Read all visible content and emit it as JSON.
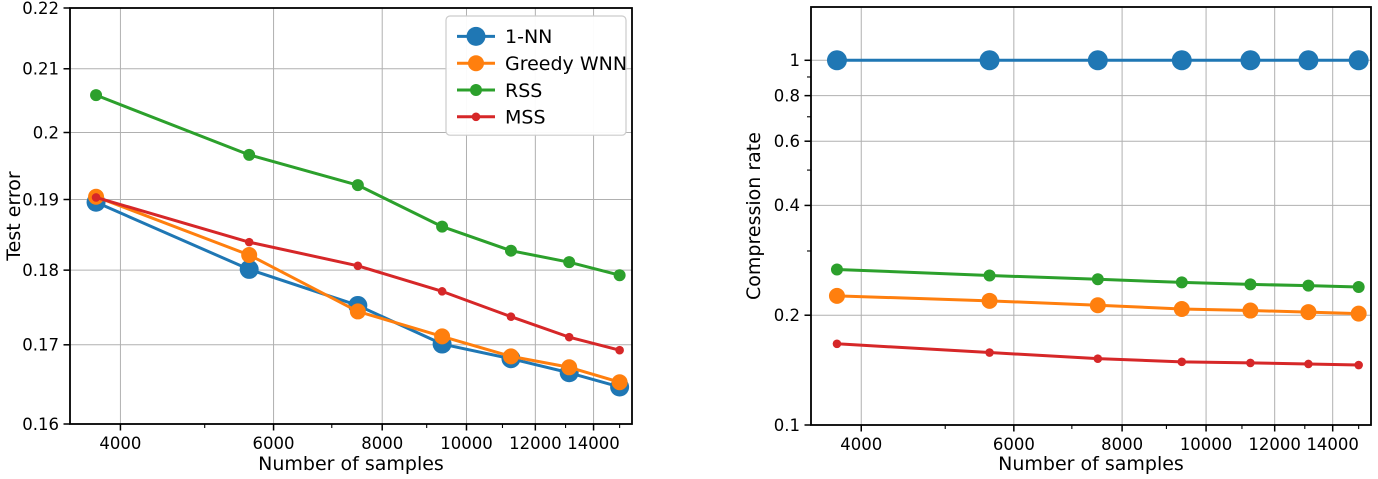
{
  "figure": {
    "background": "#ffffff",
    "grid_color": "#b0b0b0",
    "axis_color": "#000000",
    "tick_label_color": "#000000",
    "legend_border_color": "#cccccc",
    "legend_fill_color": "#ffffff"
  },
  "chart_data": [
    {
      "id": "test-error",
      "type": "line",
      "title": "",
      "xlabel": "Number of samples",
      "ylabel": "Test error",
      "xscale": "log",
      "yscale": "log",
      "xlim": [
        3500,
        15500
      ],
      "ylim": [
        0.16,
        0.22
      ],
      "grid": true,
      "xticks": {
        "values": [
          4000,
          6000,
          8000,
          10000,
          12000,
          14000
        ],
        "labels": [
          "4000",
          "6000",
          "8000",
          "10000",
          "12000",
          "14000"
        ],
        "minor": [
          5000,
          7000,
          9000,
          11000,
          13000,
          15000
        ]
      },
      "yticks": {
        "values": [
          0.16,
          0.17,
          0.18,
          0.19,
          0.2,
          0.21,
          0.22
        ],
        "labels": [
          "0.16",
          "0.17",
          "0.18",
          "0.19",
          "0.2",
          "0.21",
          "0.22"
        ],
        "minor": []
      },
      "x": [
        3750,
        5625,
        7500,
        9375,
        11250,
        13125,
        15000
      ],
      "series": [
        {
          "name": "1-NN",
          "color": "#1f77b4",
          "marker_radius": 9.5,
          "line_width": 3,
          "values": [
            0.1896,
            0.1801,
            0.1752,
            0.1701,
            0.1682,
            0.1664,
            0.1646
          ]
        },
        {
          "name": "Greedy WNN",
          "color": "#ff7f0e",
          "marker_radius": 8,
          "line_width": 3,
          "values": [
            0.1904,
            0.1821,
            0.1744,
            0.1711,
            0.1685,
            0.1671,
            0.1652
          ]
        },
        {
          "name": "RSS",
          "color": "#2ca02c",
          "marker_radius": 6,
          "line_width": 3,
          "values": [
            0.2058,
            0.1966,
            0.1921,
            0.1861,
            0.1827,
            0.1811,
            0.1793
          ]
        },
        {
          "name": "MSS",
          "color": "#d62728",
          "marker_radius": 4.3,
          "line_width": 3,
          "values": [
            0.1903,
            0.1839,
            0.1806,
            0.1771,
            0.1737,
            0.171,
            0.1693
          ]
        }
      ],
      "legend": {
        "show": true,
        "location": "upper-right",
        "entries": [
          "1-NN",
          "Greedy WNN",
          "RSS",
          "MSS"
        ]
      }
    },
    {
      "id": "compression-rate",
      "type": "line",
      "title": "",
      "xlabel": "Number of samples",
      "ylabel": "Compression rate",
      "xscale": "log",
      "yscale": "log",
      "xlim": [
        3500,
        15500
      ],
      "ylim": [
        0.1,
        1.4
      ],
      "grid": true,
      "xticks": {
        "values": [
          4000,
          6000,
          8000,
          10000,
          12000,
          14000
        ],
        "labels": [
          "4000",
          "6000",
          "8000",
          "10000",
          "12000",
          "14000"
        ],
        "minor": [
          5000,
          7000,
          9000,
          11000,
          13000,
          15000
        ]
      },
      "yticks": {
        "values": [
          1,
          0.8,
          0.6,
          0.4,
          0.2,
          0.1
        ],
        "labels": [
          "1",
          "0.8",
          "0.6",
          "0.4",
          "0.2",
          "0.1"
        ],
        "minor": [
          0.9,
          0.7,
          0.5,
          0.3
        ]
      },
      "x": [
        3750,
        5625,
        7500,
        9375,
        11250,
        13125,
        15000
      ],
      "series": [
        {
          "name": "1-NN",
          "color": "#1f77b4",
          "marker_radius": 10,
          "line_width": 3,
          "values": [
            1.0,
            1.0,
            1.0,
            1.0,
            1.0,
            1.0,
            1.0
          ]
        },
        {
          "name": "Greedy WNN",
          "color": "#ff7f0e",
          "marker_radius": 8,
          "line_width": 3,
          "values": [
            0.226,
            0.219,
            0.213,
            0.208,
            0.206,
            0.204,
            0.202
          ]
        },
        {
          "name": "RSS",
          "color": "#2ca02c",
          "marker_radius": 6,
          "line_width": 3,
          "values": [
            0.267,
            0.257,
            0.251,
            0.246,
            0.243,
            0.241,
            0.239
          ]
        },
        {
          "name": "MSS",
          "color": "#d62728",
          "marker_radius": 4.3,
          "line_width": 3,
          "values": [
            0.167,
            0.158,
            0.152,
            0.149,
            0.148,
            0.147,
            0.146
          ]
        }
      ],
      "legend": {
        "show": false,
        "location": "",
        "entries": []
      }
    }
  ]
}
